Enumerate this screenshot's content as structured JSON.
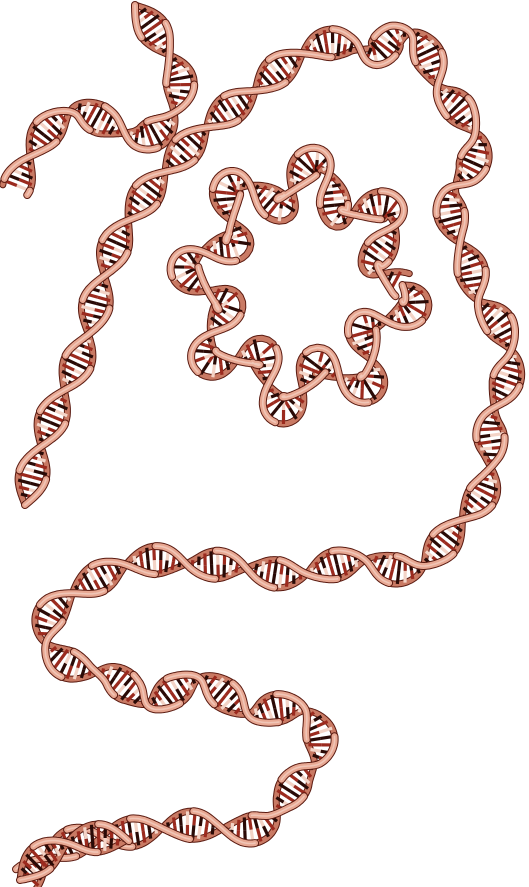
{
  "image": {
    "subject": "dna-double-helix-strands",
    "background": "#ffffff",
    "colors": {
      "strand_light": "#e8a893",
      "strand_mid": "#c97a64",
      "strand_dark": "#8f3a2a",
      "outline": "#5a1a10",
      "base_dark": "#2a0a06",
      "base_red": "#9b2a1e",
      "base_light": "#f3d3c6"
    }
  },
  "strands": [
    {
      "name": "strand-top-left",
      "kind": "open"
    },
    {
      "name": "strand-long-winding",
      "kind": "open"
    },
    {
      "name": "strand-ring",
      "kind": "closed"
    },
    {
      "name": "strand-bottom",
      "kind": "open"
    }
  ]
}
